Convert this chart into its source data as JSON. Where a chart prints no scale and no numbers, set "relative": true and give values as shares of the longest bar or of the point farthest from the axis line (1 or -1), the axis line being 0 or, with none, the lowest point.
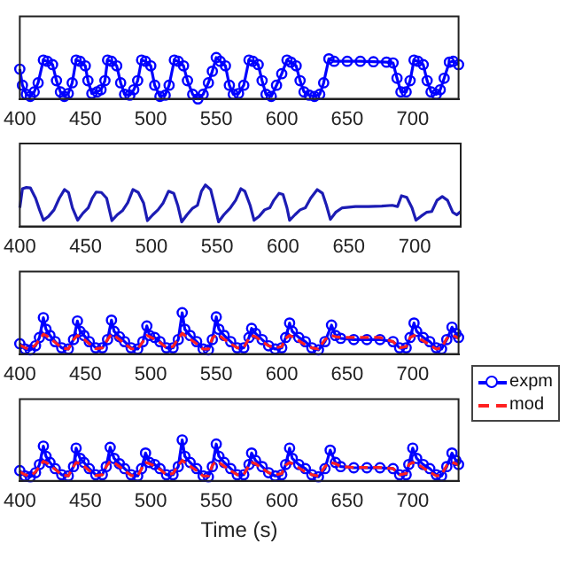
{
  "chart_data": [
    {
      "type": "line",
      "relative": true,
      "xlim": [
        400,
        735
      ],
      "xticks": [
        400,
        450,
        500,
        550,
        600,
        650,
        700
      ],
      "tick_labels": "x",
      "grid": false,
      "legend": false,
      "x": [
        400,
        402,
        405,
        408,
        411,
        414,
        418,
        421,
        425,
        428,
        431,
        434,
        437,
        440,
        443,
        446,
        450,
        452,
        455,
        459,
        462,
        465,
        467,
        470,
        474,
        477,
        480,
        484,
        487,
        490,
        493,
        496,
        500,
        503,
        507,
        511,
        514,
        518,
        521,
        525,
        528,
        532,
        536,
        540,
        544,
        547,
        550,
        553,
        557,
        560,
        563,
        567,
        571,
        575,
        578,
        582,
        585,
        588,
        592,
        596,
        600,
        604,
        607,
        611,
        614,
        617,
        621,
        625,
        629,
        632,
        636,
        640,
        650,
        660,
        670,
        680,
        685,
        688,
        691,
        695,
        698,
        701,
        704,
        708,
        711,
        714,
        718,
        721,
        724,
        728,
        731,
        735
      ],
      "series": [
        {
          "color": "#0000ff",
          "marker": "circle",
          "values": [
            0.72,
            0.33,
            0.11,
            0.06,
            0.17,
            0.39,
            0.94,
            0.91,
            0.83,
            0.44,
            0.17,
            0.06,
            0.13,
            0.39,
            0.94,
            0.91,
            0.8,
            0.44,
            0.13,
            0.17,
            0.22,
            0.44,
            0.94,
            0.91,
            0.8,
            0.39,
            0.11,
            0.09,
            0.22,
            0.44,
            0.94,
            0.91,
            0.8,
            0.33,
            0.06,
            0.09,
            0.33,
            0.94,
            0.91,
            0.8,
            0.44,
            0.11,
            0,
            0.11,
            0.39,
            0.67,
            1,
            0.91,
            0.8,
            0.33,
            0.11,
            0.13,
            0.33,
            0.94,
            0.91,
            0.83,
            0.44,
            0.11,
            0.06,
            0.33,
            0.61,
            0.94,
            0.89,
            0.8,
            0.44,
            0.17,
            0.09,
            0.06,
            0.11,
            0.39,
            0.97,
            0.91,
            0.91,
            0.91,
            0.9,
            0.89,
            0.87,
            0.5,
            0.17,
            0.17,
            0.44,
            0.94,
            0.91,
            0.83,
            0.44,
            0.17,
            0.11,
            0.22,
            0.5,
            0.89,
            0.91,
            0.83
          ]
        }
      ]
    },
    {
      "type": "line",
      "relative": true,
      "xlim": [
        400,
        735
      ],
      "xticks": [
        400,
        450,
        500,
        550,
        600,
        650,
        700
      ],
      "tick_labels": "x",
      "grid": false,
      "legend": false,
      "x": [
        400,
        402,
        405,
        408,
        412,
        415,
        418,
        422,
        426,
        430,
        434,
        437,
        440,
        444,
        448,
        452,
        455,
        458,
        462,
        466,
        470,
        474,
        478,
        482,
        486,
        490,
        494,
        497,
        501,
        505,
        509,
        513,
        517,
        520,
        523,
        527,
        531,
        535,
        538,
        541,
        545,
        548,
        551,
        555,
        560,
        564,
        568,
        571,
        575,
        578,
        582,
        586,
        590,
        593,
        597,
        600,
        603,
        605,
        609,
        613,
        617,
        621,
        626,
        630,
        633,
        636,
        640,
        645,
        655,
        665,
        675,
        683,
        687,
        690,
        694,
        698,
        701,
        705,
        709,
        713,
        717,
        721,
        725,
        729,
        732,
        735
      ],
      "series": [
        {
          "color": "#1c1cb4",
          "marker": "none",
          "values": [
            0.45,
            0.91,
            0.94,
            0.93,
            0.68,
            0.4,
            0.15,
            0.25,
            0.4,
            0.68,
            0.89,
            0.82,
            0.45,
            0.15,
            0.32,
            0.45,
            0.68,
            0.83,
            0.82,
            0.68,
            0.14,
            0.28,
            0.38,
            0.57,
            0.89,
            0.82,
            0.57,
            0.14,
            0.28,
            0.4,
            0.57,
            0.85,
            0.8,
            0.51,
            0.11,
            0.28,
            0.43,
            0.51,
            0.85,
            1,
            0.89,
            0.51,
            0.11,
            0.28,
            0.45,
            0.63,
            0.91,
            0.85,
            0.51,
            0.15,
            0.25,
            0.4,
            0.45,
            0.63,
            0.8,
            0.77,
            0.45,
            0.15,
            0.28,
            0.4,
            0.45,
            0.68,
            0.89,
            0.8,
            0.51,
            0.17,
            0.34,
            0.45,
            0.48,
            0.48,
            0.49,
            0.51,
            0.48,
            0.74,
            0.7,
            0.45,
            0.15,
            0.25,
            0.34,
            0.36,
            0.63,
            0.72,
            0.63,
            0.34,
            0.28,
            0.36
          ]
        }
      ]
    },
    {
      "type": "line",
      "relative": true,
      "xlim": [
        400,
        735
      ],
      "xticks": [
        400,
        450,
        500,
        550,
        600,
        650,
        700
      ],
      "tick_labels": "x",
      "grid": false,
      "legend": "right",
      "x": [
        400,
        404,
        408,
        412,
        415,
        418,
        420,
        423,
        427,
        432,
        437,
        441,
        444,
        446,
        449,
        453,
        458,
        463,
        467,
        470,
        472,
        476,
        480,
        485,
        490,
        494,
        497,
        499,
        503,
        507,
        512,
        517,
        521,
        524,
        526,
        530,
        535,
        540,
        544,
        547,
        550,
        552,
        556,
        561,
        566,
        571,
        575,
        577,
        580,
        585,
        590,
        595,
        600,
        603,
        606,
        608,
        613,
        618,
        623,
        628,
        633,
        638,
        641,
        645,
        655,
        665,
        675,
        685,
        690,
        695,
        698,
        701,
        703,
        708,
        713,
        718,
        722,
        726,
        730,
        733,
        735
      ],
      "series": [
        {
          "name": "expm",
          "color": "#0000ff",
          "marker": "circle",
          "line_style": "solid",
          "values": [
            0.25,
            0.12,
            0.1,
            0.2,
            0.4,
            0.88,
            0.6,
            0.45,
            0.3,
            0.15,
            0.12,
            0.35,
            0.8,
            0.55,
            0.45,
            0.3,
            0.15,
            0.15,
            0.35,
            0.82,
            0.55,
            0.42,
            0.3,
            0.15,
            0.12,
            0.3,
            0.68,
            0.45,
            0.4,
            0.3,
            0.15,
            0.15,
            0.35,
            1,
            0.6,
            0.45,
            0.3,
            0.12,
            0.1,
            0.35,
            0.9,
            0.6,
            0.45,
            0.3,
            0.15,
            0.15,
            0.4,
            0.62,
            0.5,
            0.35,
            0.2,
            0.12,
            0.15,
            0.4,
            0.75,
            0.55,
            0.4,
            0.3,
            0.15,
            0.1,
            0.3,
            0.7,
            0.45,
            0.38,
            0.35,
            0.35,
            0.35,
            0.3,
            0.15,
            0.15,
            0.4,
            0.75,
            0.55,
            0.4,
            0.3,
            0.15,
            0.12,
            0.35,
            0.65,
            0.5,
            0.4
          ]
        },
        {
          "name": "mod",
          "color": "#ff2020",
          "marker": "none",
          "line_style": "dashed",
          "values": [
            0.22,
            0.15,
            0.12,
            0.22,
            0.35,
            0.48,
            0.45,
            0.38,
            0.28,
            0.15,
            0.12,
            0.35,
            0.45,
            0.42,
            0.36,
            0.25,
            0.13,
            0.15,
            0.35,
            0.48,
            0.45,
            0.35,
            0.25,
            0.13,
            0.12,
            0.3,
            0.45,
            0.42,
            0.36,
            0.28,
            0.15,
            0.18,
            0.38,
            0.5,
            0.45,
            0.36,
            0.25,
            0.12,
            0.12,
            0.38,
            0.48,
            0.45,
            0.36,
            0.25,
            0.15,
            0.15,
            0.38,
            0.45,
            0.42,
            0.3,
            0.2,
            0.15,
            0.18,
            0.38,
            0.45,
            0.42,
            0.32,
            0.22,
            0.15,
            0.12,
            0.35,
            0.45,
            0.42,
            0.4,
            0.4,
            0.4,
            0.4,
            0.3,
            0.15,
            0.18,
            0.4,
            0.45,
            0.42,
            0.32,
            0.22,
            0.12,
            0.15,
            0.38,
            0.45,
            0.42,
            0.38
          ]
        }
      ]
    },
    {
      "type": "line",
      "relative": true,
      "xlim": [
        400,
        735
      ],
      "xticks": [
        400,
        450,
        500,
        550,
        600,
        650,
        700
      ],
      "tick_labels": "x",
      "grid": false,
      "legend": false,
      "xlabel": "Time (s)",
      "x": [
        400,
        404,
        408,
        412,
        415,
        418,
        420,
        423,
        427,
        432,
        437,
        441,
        443,
        446,
        449,
        453,
        458,
        463,
        466,
        469,
        472,
        476,
        480,
        485,
        490,
        493,
        496,
        499,
        503,
        507,
        512,
        517,
        521,
        524,
        526,
        530,
        535,
        540,
        544,
        547,
        550,
        552,
        556,
        561,
        566,
        571,
        575,
        577,
        580,
        585,
        590,
        595,
        600,
        603,
        606,
        608,
        613,
        618,
        623,
        628,
        633,
        637,
        641,
        645,
        655,
        665,
        675,
        685,
        690,
        695,
        697,
        700,
        703,
        708,
        713,
        718,
        722,
        726,
        730,
        733,
        735
      ],
      "series": [
        {
          "color": "#0000ff",
          "marker": "circle",
          "line_style": "solid",
          "values": [
            0.25,
            0.12,
            0.1,
            0.2,
            0.4,
            0.85,
            0.6,
            0.45,
            0.3,
            0.15,
            0.12,
            0.35,
            0.8,
            0.55,
            0.45,
            0.3,
            0.15,
            0.15,
            0.35,
            0.82,
            0.55,
            0.42,
            0.3,
            0.15,
            0.12,
            0.3,
            0.68,
            0.45,
            0.4,
            0.3,
            0.15,
            0.15,
            0.35,
            1,
            0.6,
            0.45,
            0.3,
            0.12,
            0.1,
            0.35,
            0.9,
            0.6,
            0.45,
            0.3,
            0.15,
            0.15,
            0.4,
            0.68,
            0.5,
            0.35,
            0.2,
            0.12,
            0.15,
            0.4,
            0.8,
            0.55,
            0.4,
            0.3,
            0.15,
            0.1,
            0.3,
            0.75,
            0.45,
            0.35,
            0.32,
            0.32,
            0.32,
            0.3,
            0.15,
            0.15,
            0.4,
            0.8,
            0.55,
            0.4,
            0.3,
            0.15,
            0.12,
            0.35,
            0.68,
            0.5,
            0.4
          ]
        },
        {
          "color": "#ff2020",
          "marker": "none",
          "line_style": "dashed",
          "values": [
            0.22,
            0.15,
            0.12,
            0.22,
            0.35,
            0.48,
            0.45,
            0.38,
            0.28,
            0.15,
            0.12,
            0.35,
            0.45,
            0.42,
            0.36,
            0.25,
            0.13,
            0.15,
            0.35,
            0.48,
            0.45,
            0.35,
            0.25,
            0.13,
            0.12,
            0.3,
            0.45,
            0.42,
            0.36,
            0.28,
            0.15,
            0.18,
            0.38,
            0.5,
            0.45,
            0.36,
            0.25,
            0.12,
            0.12,
            0.38,
            0.48,
            0.45,
            0.36,
            0.25,
            0.15,
            0.15,
            0.38,
            0.45,
            0.42,
            0.3,
            0.2,
            0.15,
            0.18,
            0.38,
            0.45,
            0.42,
            0.32,
            0.22,
            0.15,
            0.12,
            0.35,
            0.45,
            0.42,
            0.35,
            0.33,
            0.33,
            0.33,
            0.3,
            0.15,
            0.18,
            0.4,
            0.45,
            0.42,
            0.32,
            0.22,
            0.12,
            0.15,
            0.38,
            0.45,
            0.42,
            0.38
          ]
        }
      ]
    }
  ]
}
